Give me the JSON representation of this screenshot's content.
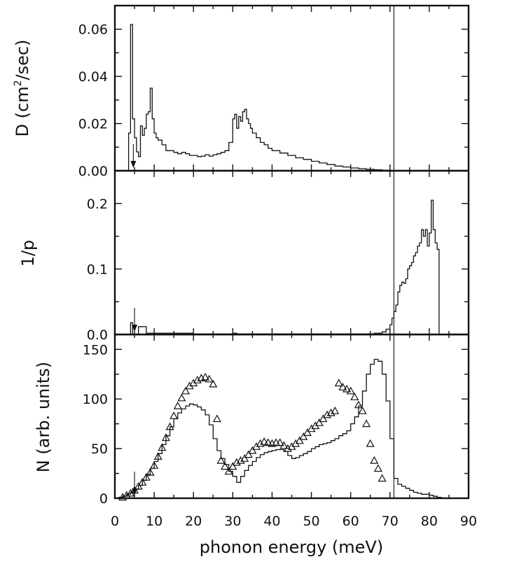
{
  "chart_data": [
    {
      "type": "line",
      "panel": "top",
      "ylabel_text": "D (cm",
      "ylabel_sup": "2",
      "ylabel_tail": "/sec)",
      "xlim": [
        0,
        90
      ],
      "ylim": [
        0,
        0.07
      ],
      "yticks": [
        0,
        0.02,
        0.04,
        0.06
      ],
      "ytick_labels": [
        "0.00",
        "0.02",
        "0.04",
        "0.06"
      ],
      "x": [
        3.5,
        4,
        4.5,
        5,
        5.5,
        6,
        6.5,
        7,
        7.5,
        8,
        8.5,
        9,
        9.5,
        10,
        10.5,
        11,
        12,
        13,
        14,
        15,
        16,
        17,
        18,
        19,
        20,
        21,
        22,
        23,
        24,
        25,
        26,
        27,
        28,
        29,
        30,
        30.5,
        31,
        31.5,
        32,
        32.5,
        33,
        33.5,
        34,
        34.5,
        35,
        36,
        37,
        38,
        39,
        40,
        42,
        44,
        46,
        48,
        50,
        52,
        54,
        56,
        58,
        60,
        62,
        64,
        66,
        68,
        70,
        71
      ],
      "y": [
        0.016,
        0.062,
        0.022,
        0.014,
        0.008,
        0.006,
        0.019,
        0.015,
        0.018,
        0.024,
        0.025,
        0.035,
        0.022,
        0.016,
        0.014,
        0.013,
        0.011,
        0.0085,
        0.0085,
        0.0078,
        0.0072,
        0.0078,
        0.0072,
        0.0065,
        0.0065,
        0.006,
        0.0062,
        0.0068,
        0.0062,
        0.0068,
        0.0072,
        0.0078,
        0.0085,
        0.012,
        0.022,
        0.024,
        0.018,
        0.023,
        0.021,
        0.025,
        0.026,
        0.022,
        0.02,
        0.018,
        0.016,
        0.014,
        0.012,
        0.011,
        0.0095,
        0.0085,
        0.0075,
        0.0065,
        0.0055,
        0.0048,
        0.004,
        0.0033,
        0.0026,
        0.002,
        0.0016,
        0.0012,
        0.0009,
        0.0006,
        0.0004,
        0.0002,
        0.0001,
        0.0
      ],
      "marker_arrow_x": 4.7
    },
    {
      "type": "line",
      "panel": "middle",
      "ylabel": "1/p",
      "xlim": [
        0,
        90
      ],
      "ylim": [
        0,
        0.25
      ],
      "yticks": [
        0,
        0.1,
        0.2
      ],
      "ytick_labels": [
        "0.0",
        "0.1",
        "0.2"
      ],
      "x": [
        0,
        3.5,
        4,
        4.5,
        5,
        6,
        7,
        8,
        20,
        30,
        31,
        40,
        60,
        66,
        68,
        69,
        70,
        70.5,
        71,
        71.5,
        72,
        72.5,
        73,
        73.5,
        74,
        74.5,
        75,
        75.5,
        76,
        76.5,
        77,
        77.5,
        78,
        78.5,
        79,
        79.5,
        80,
        80.5,
        81,
        81.5,
        82,
        82.5,
        83
      ],
      "y": [
        0,
        0,
        0.018,
        0.0,
        0.0,
        0.012,
        0.012,
        0.002,
        0.001,
        0.002,
        0.001,
        0.001,
        0.001,
        0.002,
        0.004,
        0.008,
        0.015,
        0.025,
        0.035,
        0.045,
        0.065,
        0.075,
        0.08,
        0.078,
        0.085,
        0.1,
        0.105,
        0.11,
        0.12,
        0.125,
        0.135,
        0.14,
        0.16,
        0.15,
        0.16,
        0.135,
        0.155,
        0.205,
        0.16,
        0.14,
        0.13,
        0.0,
        0.0
      ],
      "marker_arrow_x": 5.0
    },
    {
      "type": "line",
      "panel": "bottom",
      "ylabel": "N (arb. units)",
      "xlabel": "phonon energy (meV)",
      "xlim": [
        0,
        90
      ],
      "ylim": [
        0,
        165
      ],
      "yticks": [
        0,
        50,
        100,
        150
      ],
      "ytick_labels": [
        "0",
        "50",
        "100",
        "150"
      ],
      "xticks": [
        0,
        10,
        20,
        30,
        40,
        50,
        60,
        70,
        80,
        90
      ],
      "xtick_labels": [
        "0",
        "10",
        "20",
        "30",
        "40",
        "50",
        "60",
        "70",
        "80",
        "90"
      ],
      "series": [
        {
          "style": "histogram",
          "x": [
            0,
            1,
            2,
            3,
            4,
            5,
            6,
            7,
            8,
            9,
            10,
            11,
            12,
            13,
            14,
            15,
            16,
            17,
            18,
            19,
            20,
            21,
            22,
            23,
            24,
            25,
            26,
            27,
            28,
            29,
            30,
            31,
            32,
            33,
            34,
            35,
            36,
            37,
            38,
            39,
            40,
            41,
            42,
            43,
            44,
            45,
            46,
            47,
            48,
            49,
            50,
            51,
            52,
            53,
            54,
            55,
            56,
            57,
            58,
            59,
            60,
            61,
            62,
            63,
            64,
            65,
            66,
            67,
            68,
            69,
            70,
            71,
            72,
            73,
            74,
            75,
            76,
            77,
            78,
            79,
            80,
            81,
            82,
            83
          ],
          "y": [
            0,
            1,
            2,
            4,
            6,
            9,
            13,
            18,
            24,
            30,
            37,
            45,
            54,
            63,
            72,
            80,
            86,
            90,
            93,
            95,
            94,
            92,
            89,
            84,
            74,
            60,
            48,
            40,
            34,
            27,
            22,
            16,
            22,
            28,
            33,
            37,
            41,
            44,
            46,
            47,
            48,
            49,
            49,
            47,
            43,
            40,
            41,
            43,
            45,
            47,
            50,
            52,
            54,
            55,
            56,
            58,
            60,
            63,
            65,
            68,
            75,
            82,
            93,
            108,
            125,
            135,
            140,
            138,
            125,
            98,
            60,
            20,
            14,
            12,
            10,
            8,
            6,
            5,
            4,
            4,
            3,
            2,
            1,
            0
          ]
        },
        {
          "style": "triangles",
          "x": [
            2,
            3,
            4,
            5,
            6,
            7,
            8,
            9,
            10,
            11,
            12,
            13,
            14,
            15,
            16,
            17,
            18,
            19,
            20,
            21,
            22,
            23,
            24,
            25,
            26,
            27,
            28,
            29,
            30,
            31,
            32,
            33,
            34,
            35,
            36,
            37,
            38,
            39,
            40,
            41,
            42,
            43,
            44,
            45,
            46,
            47,
            48,
            49,
            50,
            51,
            52,
            53,
            54,
            55,
            56,
            57,
            58,
            59,
            60,
            61,
            62,
            63,
            64,
            65,
            66,
            67,
            68
          ],
          "y": [
            1,
            3,
            5,
            8,
            12,
            16,
            21,
            26,
            33,
            42,
            51,
            61,
            72,
            83,
            93,
            101,
            108,
            113,
            116,
            119,
            121,
            122,
            120,
            115,
            80,
            38,
            32,
            27,
            32,
            36,
            38,
            40,
            44,
            48,
            52,
            55,
            57,
            56,
            55,
            56,
            56,
            53,
            50,
            52,
            55,
            58,
            62,
            66,
            70,
            73,
            76,
            80,
            84,
            86,
            88,
            116,
            112,
            110,
            108,
            102,
            94,
            88,
            75,
            55,
            38,
            30,
            20
          ]
        }
      ],
      "marker_arrow_x": 5.0
    }
  ],
  "annotations": {
    "vertical_line_x": 71
  }
}
